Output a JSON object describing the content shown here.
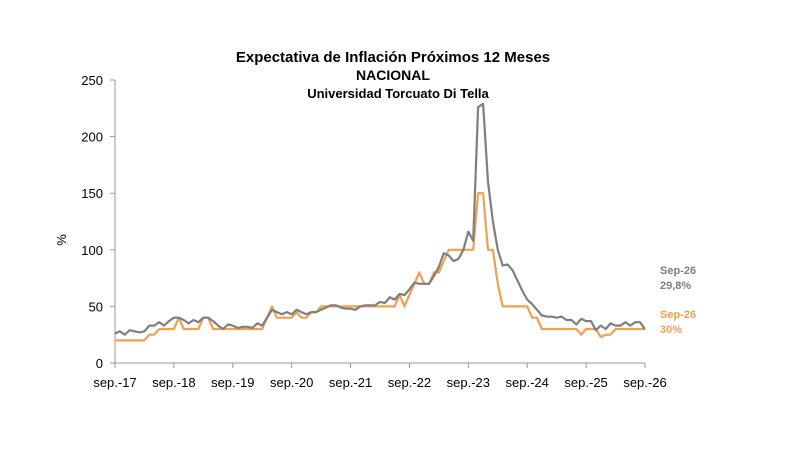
{
  "chart_data": {
    "type": "line",
    "title": "Expectativa de Inflación Próximos 12 Meses",
    "subtitle": "NACIONAL",
    "subtitle2": "Universidad Torcuato Di Tella",
    "ylabel": "%",
    "xlabel": "",
    "ylim": [
      0,
      250
    ],
    "yticks": [
      0,
      50,
      100,
      150,
      200,
      250
    ],
    "grid": false,
    "xlim": [
      "2017-09",
      "2026-09"
    ],
    "xticks": [
      {
        "date": "2017-09",
        "label": "sep.-17"
      },
      {
        "date": "2018-09",
        "label": "sep.-18"
      },
      {
        "date": "2019-09",
        "label": "sep.-19"
      },
      {
        "date": "2020-09",
        "label": "sep.-20"
      },
      {
        "date": "2021-09",
        "label": "sep.-21"
      },
      {
        "date": "2022-09",
        "label": "sep.-22"
      },
      {
        "date": "2023-09",
        "label": "sep.-23"
      },
      {
        "date": "2024-09",
        "label": "sep.-24"
      },
      {
        "date": "2025-09",
        "label": "sep.-25"
      },
      {
        "date": "2026-09",
        "label": "sep.-26"
      }
    ],
    "series": [
      {
        "key": "mean",
        "color": "#7f7f7f",
        "points": [
          [
            "2017-09",
            26
          ],
          [
            "2017-10",
            28
          ],
          [
            "2017-11",
            25
          ],
          [
            "2017-12",
            29
          ],
          [
            "2018-01",
            28
          ],
          [
            "2018-02",
            27
          ],
          [
            "2018-03",
            28
          ],
          [
            "2018-04",
            33
          ],
          [
            "2018-05",
            33
          ],
          [
            "2018-06",
            36
          ],
          [
            "2018-07",
            33
          ],
          [
            "2018-08",
            37
          ],
          [
            "2018-09",
            40
          ],
          [
            "2018-10",
            40
          ],
          [
            "2018-11",
            38
          ],
          [
            "2018-12",
            35
          ],
          [
            "2019-01",
            38
          ],
          [
            "2019-02",
            36
          ],
          [
            "2019-03",
            40
          ],
          [
            "2019-04",
            40
          ],
          [
            "2019-05",
            37
          ],
          [
            "2019-06",
            33
          ],
          [
            "2019-07",
            30
          ],
          [
            "2019-08",
            34
          ],
          [
            "2019-09",
            33
          ],
          [
            "2019-10",
            31
          ],
          [
            "2019-11",
            32
          ],
          [
            "2019-12",
            32
          ],
          [
            "2020-01",
            31
          ],
          [
            "2020-02",
            35
          ],
          [
            "2020-03",
            33
          ],
          [
            "2020-04",
            40
          ],
          [
            "2020-05",
            47
          ],
          [
            "2020-06",
            45
          ],
          [
            "2020-07",
            43
          ],
          [
            "2020-08",
            45
          ],
          [
            "2020-09",
            43
          ],
          [
            "2020-10",
            47
          ],
          [
            "2020-11",
            45
          ],
          [
            "2020-12",
            43
          ],
          [
            "2021-01",
            45
          ],
          [
            "2021-02",
            45
          ],
          [
            "2021-03",
            47
          ],
          [
            "2021-04",
            49
          ],
          [
            "2021-05",
            51
          ],
          [
            "2021-06",
            51
          ],
          [
            "2021-07",
            49
          ],
          [
            "2021-08",
            48
          ],
          [
            "2021-09",
            48
          ],
          [
            "2021-10",
            47
          ],
          [
            "2021-11",
            50
          ],
          [
            "2021-12",
            51
          ],
          [
            "2022-01",
            51
          ],
          [
            "2022-02",
            51
          ],
          [
            "2022-03",
            54
          ],
          [
            "2022-04",
            53
          ],
          [
            "2022-05",
            58
          ],
          [
            "2022-06",
            56
          ],
          [
            "2022-07",
            61
          ],
          [
            "2022-08",
            60
          ],
          [
            "2022-09",
            65
          ],
          [
            "2022-10",
            71
          ],
          [
            "2022-11",
            70
          ],
          [
            "2022-12",
            70
          ],
          [
            "2023-01",
            70
          ],
          [
            "2023-02",
            77
          ],
          [
            "2023-03",
            85
          ],
          [
            "2023-04",
            97
          ],
          [
            "2023-05",
            95
          ],
          [
            "2023-06",
            90
          ],
          [
            "2023-07",
            92
          ],
          [
            "2023-08",
            100
          ],
          [
            "2023-09",
            116
          ],
          [
            "2023-10",
            108
          ],
          [
            "2023-11",
            226
          ],
          [
            "2023-12",
            229
          ],
          [
            "2024-01",
            160
          ],
          [
            "2024-02",
            125
          ],
          [
            "2024-03",
            100
          ],
          [
            "2024-04",
            86
          ],
          [
            "2024-05",
            87
          ],
          [
            "2024-06",
            82
          ],
          [
            "2024-07",
            73
          ],
          [
            "2024-08",
            64
          ],
          [
            "2024-09",
            56
          ],
          [
            "2024-10",
            52
          ],
          [
            "2024-11",
            47
          ],
          [
            "2024-12",
            42
          ],
          [
            "2025-01",
            41
          ],
          [
            "2025-02",
            41
          ],
          [
            "2025-03",
            40
          ],
          [
            "2025-04",
            41
          ],
          [
            "2025-05",
            38
          ],
          [
            "2025-06",
            38
          ],
          [
            "2025-07",
            34
          ],
          [
            "2025-08",
            39
          ],
          [
            "2025-09",
            37
          ],
          [
            "2025-10",
            37
          ],
          [
            "2025-11",
            29
          ],
          [
            "2025-12",
            33
          ],
          [
            "2026-01",
            30
          ],
          [
            "2026-02",
            35
          ],
          [
            "2026-03",
            33
          ],
          [
            "2026-04",
            33
          ],
          [
            "2026-05",
            36
          ],
          [
            "2026-06",
            33
          ],
          [
            "2026-07",
            36
          ],
          [
            "2026-08",
            36
          ],
          [
            "2026-09",
            29.8
          ]
        ]
      },
      {
        "key": "median",
        "color": "#f0a050",
        "points": [
          [
            "2017-09",
            20
          ],
          [
            "2017-10",
            20
          ],
          [
            "2017-11",
            20
          ],
          [
            "2017-12",
            20
          ],
          [
            "2018-01",
            20
          ],
          [
            "2018-02",
            20
          ],
          [
            "2018-03",
            20
          ],
          [
            "2018-04",
            25
          ],
          [
            "2018-05",
            25
          ],
          [
            "2018-06",
            30
          ],
          [
            "2018-07",
            30
          ],
          [
            "2018-08",
            30
          ],
          [
            "2018-09",
            30
          ],
          [
            "2018-10",
            40
          ],
          [
            "2018-11",
            30
          ],
          [
            "2018-12",
            30
          ],
          [
            "2019-01",
            30
          ],
          [
            "2019-02",
            30
          ],
          [
            "2019-03",
            40
          ],
          [
            "2019-04",
            40
          ],
          [
            "2019-05",
            30
          ],
          [
            "2019-06",
            30
          ],
          [
            "2019-07",
            30
          ],
          [
            "2019-08",
            30
          ],
          [
            "2019-09",
            30
          ],
          [
            "2019-10",
            30
          ],
          [
            "2019-11",
            30
          ],
          [
            "2019-12",
            30
          ],
          [
            "2020-01",
            30
          ],
          [
            "2020-02",
            30
          ],
          [
            "2020-03",
            30
          ],
          [
            "2020-04",
            40
          ],
          [
            "2020-05",
            50
          ],
          [
            "2020-06",
            40
          ],
          [
            "2020-07",
            40
          ],
          [
            "2020-08",
            40
          ],
          [
            "2020-09",
            40
          ],
          [
            "2020-10",
            45
          ],
          [
            "2020-11",
            40
          ],
          [
            "2020-12",
            40
          ],
          [
            "2021-01",
            45
          ],
          [
            "2021-02",
            45
          ],
          [
            "2021-03",
            50
          ],
          [
            "2021-04",
            50
          ],
          [
            "2021-05",
            50
          ],
          [
            "2021-06",
            50
          ],
          [
            "2021-07",
            50
          ],
          [
            "2021-08",
            50
          ],
          [
            "2021-09",
            50
          ],
          [
            "2021-10",
            50
          ],
          [
            "2021-11",
            50
          ],
          [
            "2021-12",
            50
          ],
          [
            "2022-01",
            50
          ],
          [
            "2022-02",
            50
          ],
          [
            "2022-03",
            50
          ],
          [
            "2022-04",
            50
          ],
          [
            "2022-05",
            50
          ],
          [
            "2022-06",
            50
          ],
          [
            "2022-07",
            60
          ],
          [
            "2022-08",
            50
          ],
          [
            "2022-09",
            60
          ],
          [
            "2022-10",
            70
          ],
          [
            "2022-11",
            80
          ],
          [
            "2022-12",
            70
          ],
          [
            "2023-01",
            70
          ],
          [
            "2023-02",
            80
          ],
          [
            "2023-03",
            80
          ],
          [
            "2023-04",
            90
          ],
          [
            "2023-05",
            100
          ],
          [
            "2023-06",
            100
          ],
          [
            "2023-07",
            100
          ],
          [
            "2023-08",
            100
          ],
          [
            "2023-09",
            100
          ],
          [
            "2023-10",
            100
          ],
          [
            "2023-11",
            150
          ],
          [
            "2023-12",
            150
          ],
          [
            "2024-01",
            100
          ],
          [
            "2024-02",
            100
          ],
          [
            "2024-03",
            70
          ],
          [
            "2024-04",
            50
          ],
          [
            "2024-05",
            50
          ],
          [
            "2024-06",
            50
          ],
          [
            "2024-07",
            50
          ],
          [
            "2024-08",
            50
          ],
          [
            "2024-09",
            50
          ],
          [
            "2024-10",
            40
          ],
          [
            "2024-11",
            40
          ],
          [
            "2024-12",
            30
          ],
          [
            "2025-01",
            30
          ],
          [
            "2025-02",
            30
          ],
          [
            "2025-03",
            30
          ],
          [
            "2025-04",
            30
          ],
          [
            "2025-05",
            30
          ],
          [
            "2025-06",
            30
          ],
          [
            "2025-07",
            30
          ],
          [
            "2025-08",
            25
          ],
          [
            "2025-09",
            30
          ],
          [
            "2025-10",
            30
          ],
          [
            "2025-11",
            30
          ],
          [
            "2025-12",
            23
          ],
          [
            "2026-01",
            25
          ],
          [
            "2026-02",
            25
          ],
          [
            "2026-03",
            30
          ],
          [
            "2026-04",
            30
          ],
          [
            "2026-05",
            30
          ],
          [
            "2026-06",
            30
          ],
          [
            "2026-07",
            30
          ],
          [
            "2026-08",
            30
          ],
          [
            "2026-09",
            30
          ]
        ]
      }
    ],
    "annotations": [
      {
        "series": "mean",
        "lines": [
          "Sep-26",
          "29,8%"
        ],
        "color": "#7f7f7f"
      },
      {
        "series": "median",
        "lines": [
          "Sep-26",
          "30%"
        ],
        "color": "#f0a050"
      }
    ]
  }
}
